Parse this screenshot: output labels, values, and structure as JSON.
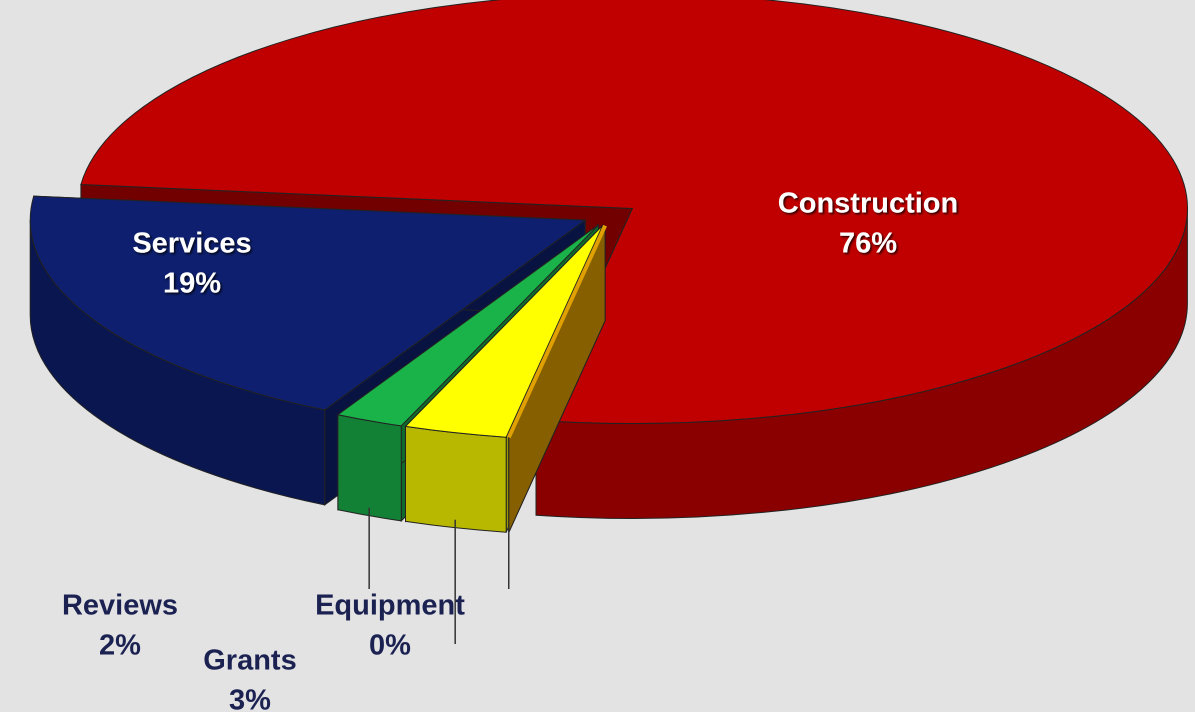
{
  "chart_data": {
    "type": "pie",
    "categories": [
      "Construction",
      "Equipment",
      "Grants",
      "Reviews",
      "Services"
    ],
    "values": [
      76,
      0,
      3,
      2,
      19
    ],
    "value_labels": [
      "76%",
      "0%",
      "3%",
      "2%",
      "19%"
    ],
    "colors": [
      "#c00000",
      "#e0a000",
      "#ffff00",
      "#19b34a",
      "#0d1f6e"
    ]
  }
}
